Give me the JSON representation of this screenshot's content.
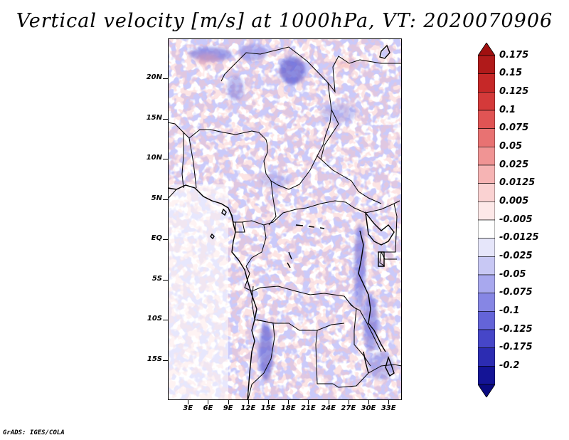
{
  "title": "Vertical velocity [m/s] at 1000hPa, VT: 2020070906",
  "credit": "GrADS: IGES/COLA",
  "map": {
    "lon_range": [
      0,
      35
    ],
    "lat_range": [
      -20,
      25
    ],
    "lat_labels": [
      {
        "lat": 20,
        "label": "20N"
      },
      {
        "lat": 15,
        "label": "15N"
      },
      {
        "lat": 10,
        "label": "10N"
      },
      {
        "lat": 5,
        "label": "5N"
      },
      {
        "lat": 0,
        "label": "EQ"
      },
      {
        "lat": -5,
        "label": "5S"
      },
      {
        "lat": -10,
        "label": "10S"
      },
      {
        "lat": -15,
        "label": "15S"
      }
    ],
    "lon_labels": [
      {
        "lon": 3,
        "label": "3E"
      },
      {
        "lon": 6,
        "label": "6E"
      },
      {
        "lon": 9,
        "label": "9E"
      },
      {
        "lon": 12,
        "label": "12E"
      },
      {
        "lon": 15,
        "label": "15E"
      },
      {
        "lon": 18,
        "label": "18E"
      },
      {
        "lon": 21,
        "label": "21E"
      },
      {
        "lon": 24,
        "label": "24E"
      },
      {
        "lon": 27,
        "label": "27E"
      },
      {
        "lon": 30,
        "label": "30E"
      },
      {
        "lon": 33,
        "label": "33E"
      }
    ]
  },
  "colorbar": {
    "levels": [
      {
        "label": "0.175",
        "color": "#b01a1a"
      },
      {
        "label": "0.15",
        "color": "#c62828"
      },
      {
        "label": "0.125",
        "color": "#d43a3a"
      },
      {
        "label": "0.1",
        "color": "#e05454"
      },
      {
        "label": "0.075",
        "color": "#e87272"
      },
      {
        "label": "0.05",
        "color": "#f09494"
      },
      {
        "label": "0.025",
        "color": "#f6b4b4"
      },
      {
        "label": "0.0125",
        "color": "#fad2d2"
      },
      {
        "label": "0.005",
        "color": "#fde8e8"
      },
      {
        "label": "-0.005",
        "color": "#ffffff"
      },
      {
        "label": "-0.0125",
        "color": "#e6e6fa"
      },
      {
        "label": "-0.025",
        "color": "#c8c8f4"
      },
      {
        "label": "-0.05",
        "color": "#a8a8ee"
      },
      {
        "label": "-0.075",
        "color": "#8686e4"
      },
      {
        "label": "-0.1",
        "color": "#6464d8"
      },
      {
        "label": "-0.125",
        "color": "#4646c8"
      },
      {
        "label": "-0.175",
        "color": "#2c2cb2"
      },
      {
        "label": "-0.2",
        "color": "#141496"
      }
    ],
    "top_color": "#a01010",
    "bottom_color": "#0a0a80"
  }
}
